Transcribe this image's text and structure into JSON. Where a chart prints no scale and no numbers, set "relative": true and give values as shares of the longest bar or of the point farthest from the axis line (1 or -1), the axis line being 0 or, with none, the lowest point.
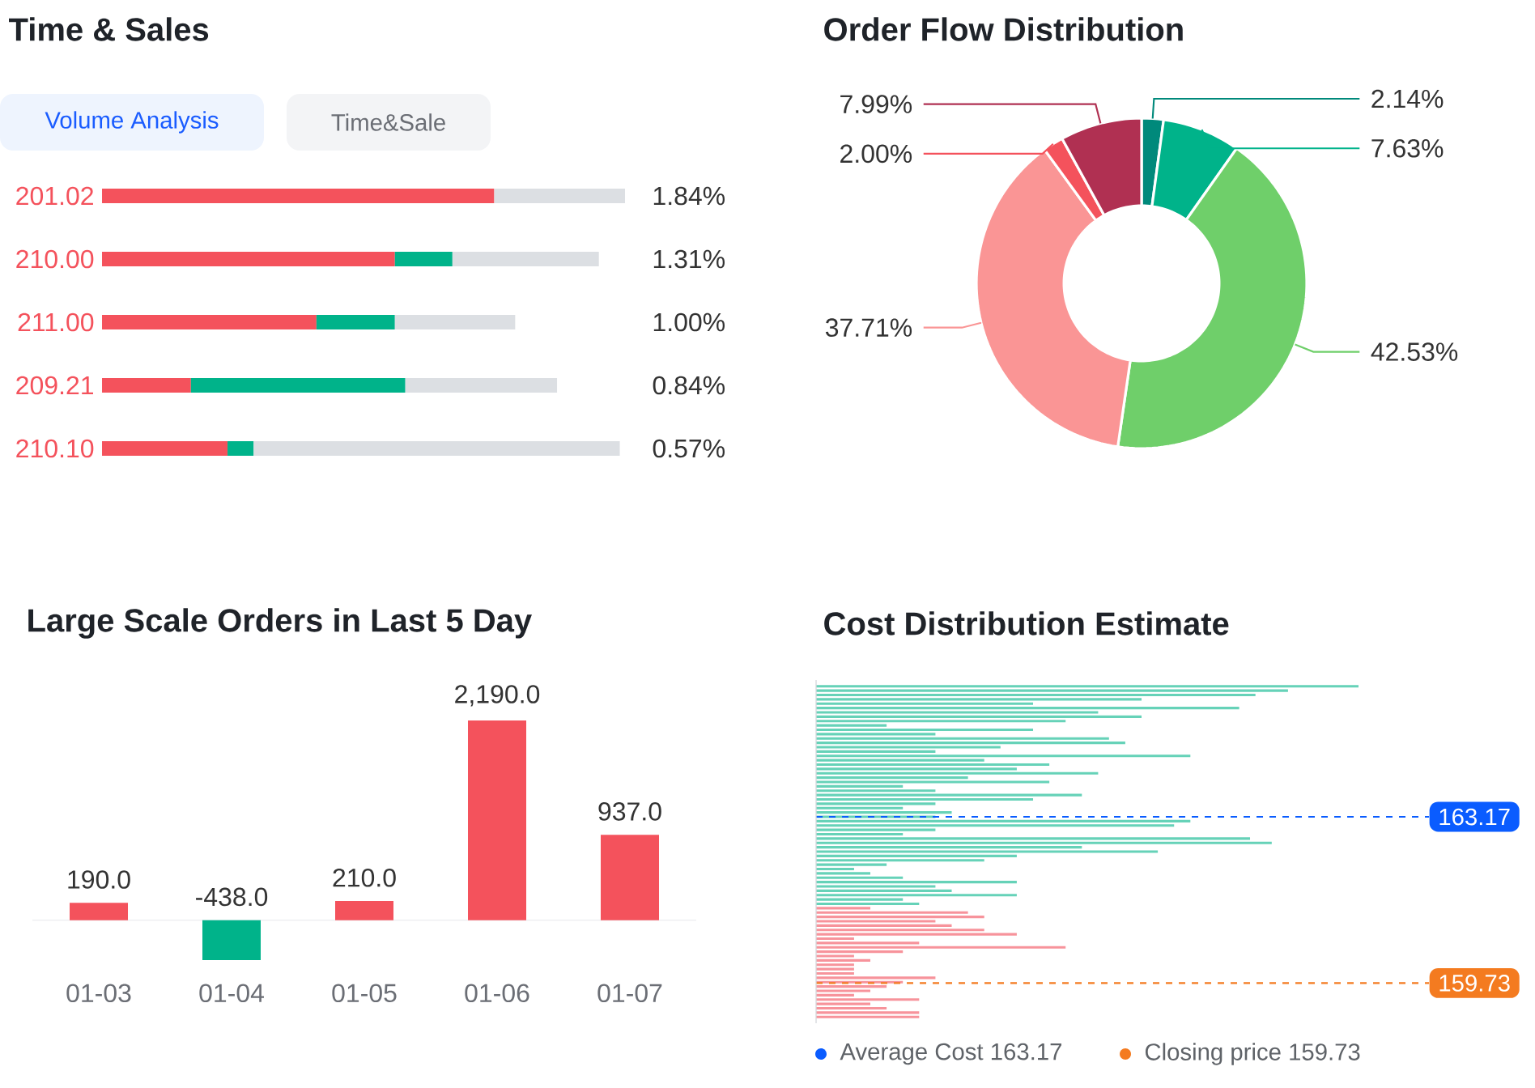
{
  "chart_data": [
    {
      "type": "bar",
      "title": "Time & Sales",
      "orientation": "horizontal",
      "stacked": true,
      "relative": true,
      "categories": [
        "201.02",
        "210.00",
        "211.00",
        "209.21",
        "210.10"
      ],
      "series": [
        {
          "color": "#f4525c",
          "values": [
            0.75,
            0.56,
            0.41,
            0.17,
            0.24
          ]
        },
        {
          "color": "#00b38a",
          "values": [
            null,
            0.11,
            0.15,
            0.41,
            0.05
          ]
        },
        {
          "color": "#dcdfe3",
          "values": [
            0.25,
            0.28,
            0.23,
            0.29,
            0.7
          ]
        }
      ],
      "annotations": [
        "Volume Analysis",
        "Time&Sale",
        "1.84%",
        "1.31%",
        "1.00%",
        "0.84%",
        "0.57%"
      ]
    },
    {
      "type": "donut",
      "title": "Order Flow Distribution",
      "categories": [
        null,
        null,
        null,
        null,
        null,
        null
      ],
      "values": [
        2.14,
        7.63,
        42.53,
        37.71,
        2.0,
        7.99
      ],
      "colors": [
        "#00897b",
        "#00b38a",
        "#6fcf6a",
        "#fa9595",
        "#f4525c",
        "#b03052"
      ],
      "value_labels": [
        "2.14%",
        "7.63%",
        "42.53%",
        "37.71%",
        "2.00%",
        "7.99%"
      ]
    },
    {
      "type": "bar",
      "title": "Large Scale Orders in Last 5 Day",
      "categories": [
        "01-03",
        "01-04",
        "01-05",
        "01-06",
        "01-07"
      ],
      "values": [
        190,
        -438,
        210,
        2190,
        937
      ],
      "colors": [
        "#f4525c",
        "#00b38a",
        "#f4525c",
        "#f4525c",
        "#f4525c"
      ],
      "value_labels": [
        "190.0",
        "-438.0",
        "210.0",
        "2,190.0",
        "937.0"
      ]
    },
    {
      "type": "bar",
      "title": "Cost Distribution Estimate",
      "orientation": "horizontal",
      "relative": true,
      "ylim": [
        158.9,
        166.0
      ],
      "series": [
        {
          "color": "#66d2b8",
          "x": [
            165.87,
            165.78,
            165.69,
            165.6,
            165.51,
            165.42,
            165.33,
            165.24,
            165.15,
            165.06,
            164.97,
            164.88,
            164.79,
            164.7,
            164.61,
            164.52,
            164.43,
            164.34,
            164.25,
            164.16,
            164.07,
            163.98,
            163.89,
            163.8,
            163.71,
            163.62,
            163.53,
            163.44,
            163.35,
            163.26,
            163.17,
            163.08,
            162.99,
            162.9,
            162.81,
            162.72,
            162.63,
            162.54,
            162.45,
            162.36,
            162.27,
            162.18,
            162.09,
            162.0,
            161.91,
            161.82,
            161.73,
            161.64,
            161.55,
            161.46,
            161.37
          ],
          "values": [
            1.0,
            0.87,
            0.81,
            0.6,
            0.4,
            0.78,
            0.52,
            0.6,
            0.46,
            0.13,
            0.4,
            0.22,
            0.54,
            0.57,
            0.34,
            0.22,
            0.69,
            0.31,
            0.43,
            0.37,
            0.52,
            0.28,
            0.43,
            0.16,
            0.22,
            0.49,
            0.4,
            0.22,
            0.16,
            0.25,
            0.22,
            0.69,
            0.66,
            0.22,
            0.16,
            0.8,
            0.84,
            0.49,
            0.63,
            0.37,
            0.31,
            0.13,
            0.07,
            0.1,
            0.16,
            0.37,
            0.22,
            0.25,
            0.37,
            0.16,
            0.19
          ]
        },
        {
          "color": "#f7939b",
          "x": [
            161.28,
            161.19,
            161.1,
            161.01,
            160.92,
            160.83,
            160.74,
            160.65,
            160.56,
            160.47,
            160.38,
            160.29,
            160.2,
            160.11,
            160.02,
            159.93,
            159.84,
            159.75,
            159.66,
            159.57,
            159.48,
            159.39,
            159.3,
            159.21,
            159.12,
            159.03
          ],
          "values": [
            0.1,
            0.28,
            0.31,
            0.22,
            0.25,
            0.31,
            0.37,
            0.07,
            0.19,
            0.46,
            0.16,
            0.07,
            0.1,
            0.07,
            0.07,
            0.07,
            0.22,
            0.16,
            0.13,
            0.1,
            0.07,
            0.19,
            0.1,
            0.13,
            0.19,
            0.19
          ]
        }
      ],
      "yticks": [
        163.17,
        159.73
      ],
      "ref_lines": [
        {
          "axis": "y",
          "value": 163.17,
          "color": "#0a5cff",
          "line_style": "dashed"
        },
        {
          "axis": "y",
          "value": 159.73,
          "color": "#f47b20",
          "line_style": "dashed"
        }
      ],
      "annotations": [
        "Average Cost  163.17",
        "Closing price  159.73"
      ]
    }
  ]
}
